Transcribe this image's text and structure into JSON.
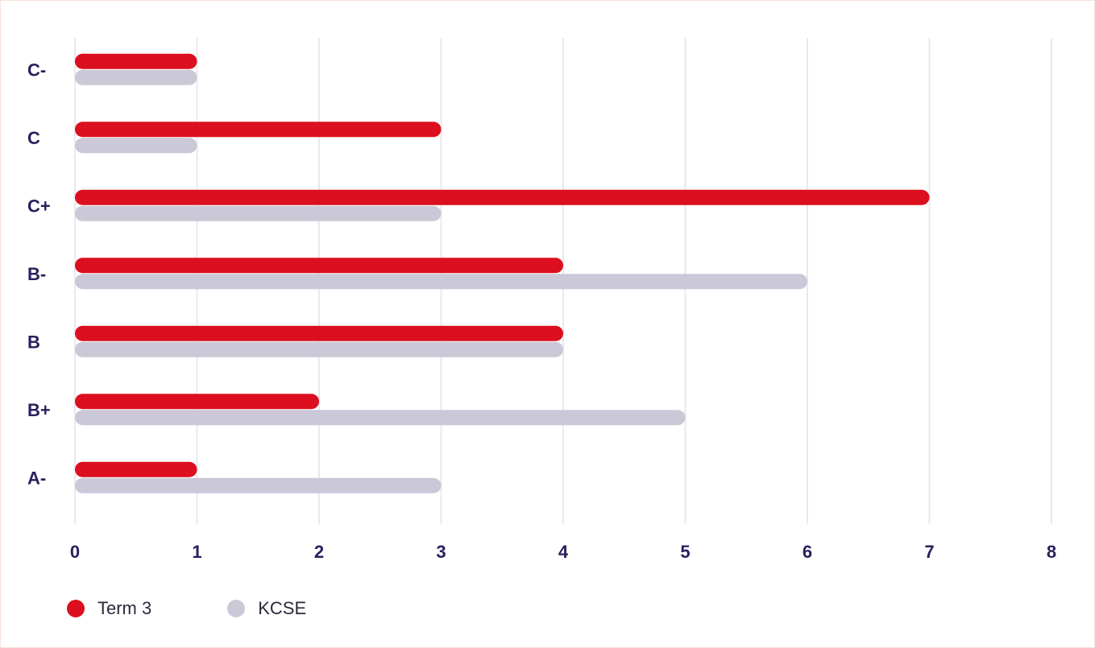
{
  "chart_data": {
    "type": "bar",
    "orientation": "horizontal",
    "categories": [
      "C-",
      "C",
      "C+",
      "B-",
      "B",
      "B+",
      "A-"
    ],
    "series": [
      {
        "name": "Term 3",
        "values": [
          1,
          3,
          7,
          4,
          4,
          2,
          1
        ],
        "color": "#dc0f1e"
      },
      {
        "name": "KCSE",
        "values": [
          1,
          1,
          3,
          6,
          4,
          5,
          3
        ],
        "color": "#cbc9d8"
      }
    ],
    "xlim": [
      0,
      8
    ],
    "xticks": [
      "0",
      "1",
      "2",
      "3",
      "4",
      "5",
      "6",
      "7",
      "8"
    ],
    "grid": true,
    "legend_position": "bottom-left",
    "title": "",
    "xlabel": "",
    "ylabel": ""
  }
}
